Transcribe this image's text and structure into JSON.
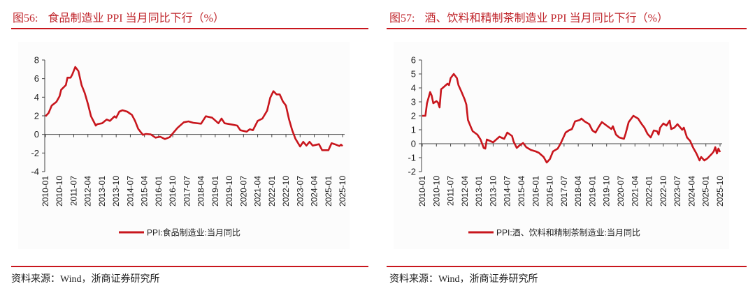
{
  "line_color": "#c8161d",
  "accent_color": "#c0272d",
  "charts": [
    {
      "figure_no": "图56:",
      "title": "食品制造业 PPI 当月同比下行（%）",
      "source": "资料来源：Wind，浙商证券研究所"
    },
    {
      "figure_no": "图57:",
      "title": "酒、饮料和精制茶制造业 PPI 当月同比下行（%）",
      "source": "资料来源：Wind，浙商证券研究所"
    }
  ],
  "chart_data": [
    {
      "type": "line",
      "title": "食品制造业 PPI 当月同比下行（%）",
      "ylim": [
        -4,
        8
      ],
      "yticks": [
        "-4",
        "-2",
        "0",
        "2",
        "4",
        "6",
        "8"
      ],
      "xlim": [
        "2010-01",
        "2025-10"
      ],
      "xticks": [
        "2010-01",
        "2010-10",
        "2011-07",
        "2012-04",
        "2013-01",
        "2013-10",
        "2014-07",
        "2015-04",
        "2016-01",
        "2016-10",
        "2017-07",
        "2018-04",
        "2019-01",
        "2019-10",
        "2020-07",
        "2021-04",
        "2022-01",
        "2022-10",
        "2023-07",
        "2024-04",
        "2025-01",
        "2025-10"
      ],
      "legend_position": "bottom",
      "grid": false,
      "series": [
        {
          "name": "PPI:食品制造业:当月同比",
          "points": [
            [
              "2010-01",
              1.95
            ],
            [
              "2010-03",
              2.3
            ],
            [
              "2010-05",
              3.1
            ],
            [
              "2010-08",
              3.5
            ],
            [
              "2010-10",
              4.1
            ],
            [
              "2010-11",
              4.8
            ],
            [
              "2011-02",
              5.3
            ],
            [
              "2011-03",
              6.1
            ],
            [
              "2011-05",
              6.1
            ],
            [
              "2011-06",
              6.4
            ],
            [
              "2011-08",
              7.25
            ],
            [
              "2011-10",
              6.8
            ],
            [
              "2011-12",
              5.3
            ],
            [
              "2012-02",
              4.45
            ],
            [
              "2012-04",
              3.3
            ],
            [
              "2012-06",
              1.95
            ],
            [
              "2012-09",
              0.95
            ],
            [
              "2012-10",
              1.1
            ],
            [
              "2013-01",
              1.2
            ],
            [
              "2013-04",
              1.6
            ],
            [
              "2013-06",
              1.45
            ],
            [
              "2013-09",
              1.95
            ],
            [
              "2013-10",
              1.8
            ],
            [
              "2013-12",
              2.45
            ],
            [
              "2014-02",
              2.6
            ],
            [
              "2014-05",
              2.45
            ],
            [
              "2014-08",
              2.1
            ],
            [
              "2014-10",
              1.45
            ],
            [
              "2014-12",
              0.6
            ],
            [
              "2015-03",
              -0.05
            ],
            [
              "2015-05",
              0.05
            ],
            [
              "2015-08",
              0.0
            ],
            [
              "2015-11",
              -0.35
            ],
            [
              "2016-02",
              -0.25
            ],
            [
              "2016-05",
              -0.5
            ],
            [
              "2016-08",
              -0.3
            ],
            [
              "2016-10",
              0.1
            ],
            [
              "2017-01",
              0.7
            ],
            [
              "2017-05",
              1.3
            ],
            [
              "2017-08",
              1.4
            ],
            [
              "2017-11",
              1.25
            ],
            [
              "2018-04",
              1.15
            ],
            [
              "2018-07",
              1.95
            ],
            [
              "2018-11",
              1.8
            ],
            [
              "2019-03",
              1.2
            ],
            [
              "2019-05",
              1.7
            ],
            [
              "2019-07",
              1.2
            ],
            [
              "2019-12",
              1.05
            ],
            [
              "2020-03",
              0.95
            ],
            [
              "2020-05",
              0.45
            ],
            [
              "2020-09",
              0.3
            ],
            [
              "2020-11",
              0.55
            ],
            [
              "2021-01",
              0.45
            ],
            [
              "2021-04",
              1.45
            ],
            [
              "2021-07",
              1.7
            ],
            [
              "2021-10",
              2.55
            ],
            [
              "2021-12",
              3.95
            ],
            [
              "2022-02",
              4.65
            ],
            [
              "2022-04",
              4.3
            ],
            [
              "2022-06",
              4.3
            ],
            [
              "2022-08",
              3.55
            ],
            [
              "2022-10",
              3.1
            ],
            [
              "2022-12",
              1.6
            ],
            [
              "2023-02",
              0.45
            ],
            [
              "2023-04",
              -0.45
            ],
            [
              "2023-07",
              -1.3
            ],
            [
              "2023-09",
              -0.8
            ],
            [
              "2023-11",
              -1.2
            ],
            [
              "2024-01",
              -0.8
            ],
            [
              "2024-03",
              -1.2
            ],
            [
              "2024-07",
              -1.05
            ],
            [
              "2024-09",
              -1.7
            ],
            [
              "2024-12",
              -1.7
            ],
            [
              "2025-01",
              -1.7
            ],
            [
              "2025-03",
              -0.95
            ],
            [
              "2025-05",
              -1.05
            ],
            [
              "2025-08",
              -1.25
            ],
            [
              "2025-09",
              -1.1
            ],
            [
              "2025-10",
              -1.25
            ]
          ]
        }
      ]
    },
    {
      "type": "line",
      "title": "酒、饮料和精制茶制造业 PPI 当月同比下行（%）",
      "ylim": [
        -2,
        6
      ],
      "yticks": [
        "-2",
        "-1",
        "0",
        "1",
        "2",
        "3",
        "4",
        "5",
        "6"
      ],
      "xlim": [
        "2010-01",
        "2025-10"
      ],
      "xticks": [
        "2010-01",
        "2010-10",
        "2011-07",
        "2012-04",
        "2013-01",
        "2013-10",
        "2014-07",
        "2015-04",
        "2016-01",
        "2016-10",
        "2017-07",
        "2018-04",
        "2019-01",
        "2019-10",
        "2020-07",
        "2021-04",
        "2022-01",
        "2022-10",
        "2023-07",
        "2024-04",
        "2025-01",
        "2025-10"
      ],
      "legend_position": "bottom",
      "grid": false,
      "series": [
        {
          "name": "PPI:酒、饮料和精制茶制造业:当月同比",
          "points": [
            [
              "2010-01",
              2.0
            ],
            [
              "2010-03",
              2.0
            ],
            [
              "2010-04",
              2.9
            ],
            [
              "2010-06",
              3.7
            ],
            [
              "2010-07",
              3.45
            ],
            [
              "2010-08",
              2.9
            ],
            [
              "2010-10",
              3.05
            ],
            [
              "2010-11",
              2.95
            ],
            [
              "2010-12",
              2.6
            ],
            [
              "2011-01",
              3.9
            ],
            [
              "2011-03",
              4.1
            ],
            [
              "2011-05",
              4.3
            ],
            [
              "2011-06",
              4.2
            ],
            [
              "2011-07",
              4.7
            ],
            [
              "2011-09",
              5.0
            ],
            [
              "2011-11",
              4.7
            ],
            [
              "2011-12",
              4.2
            ],
            [
              "2012-02",
              3.7
            ],
            [
              "2012-04",
              3.15
            ],
            [
              "2012-05",
              2.8
            ],
            [
              "2012-06",
              1.7
            ],
            [
              "2012-08",
              1.15
            ],
            [
              "2012-09",
              0.9
            ],
            [
              "2012-12",
              0.65
            ],
            [
              "2013-02",
              0.3
            ],
            [
              "2013-04",
              -0.3
            ],
            [
              "2013-05",
              -0.35
            ],
            [
              "2013-06",
              0.3
            ],
            [
              "2013-08",
              0.2
            ],
            [
              "2013-10",
              0.1
            ],
            [
              "2013-12",
              0.3
            ],
            [
              "2014-02",
              0.5
            ],
            [
              "2014-05",
              0.35
            ],
            [
              "2014-07",
              0.8
            ],
            [
              "2014-10",
              0.55
            ],
            [
              "2014-11",
              0.15
            ],
            [
              "2015-01",
              -0.3
            ],
            [
              "2015-03",
              -0.1
            ],
            [
              "2015-05",
              0.05
            ],
            [
              "2015-07",
              -0.25
            ],
            [
              "2015-10",
              -0.45
            ],
            [
              "2016-01",
              -0.55
            ],
            [
              "2016-03",
              -0.65
            ],
            [
              "2016-06",
              -0.95
            ],
            [
              "2016-08",
              -1.35
            ],
            [
              "2016-10",
              -1.1
            ],
            [
              "2016-12",
              -0.55
            ],
            [
              "2017-03",
              -0.35
            ],
            [
              "2017-05",
              0.05
            ],
            [
              "2017-08",
              0.8
            ],
            [
              "2017-10",
              0.95
            ],
            [
              "2017-12",
              1.05
            ],
            [
              "2018-02",
              1.6
            ],
            [
              "2018-05",
              1.7
            ],
            [
              "2018-06",
              1.8
            ],
            [
              "2018-08",
              1.6
            ],
            [
              "2018-11",
              1.4
            ],
            [
              "2019-01",
              0.95
            ],
            [
              "2019-03",
              0.8
            ],
            [
              "2019-05",
              1.2
            ],
            [
              "2019-07",
              1.55
            ],
            [
              "2019-10",
              1.3
            ],
            [
              "2020-01",
              1.05
            ],
            [
              "2020-02",
              1.25
            ],
            [
              "2020-04",
              0.65
            ],
            [
              "2020-06",
              0.45
            ],
            [
              "2020-09",
              0.35
            ],
            [
              "2020-10",
              0.7
            ],
            [
              "2020-12",
              1.55
            ],
            [
              "2021-03",
              2.0
            ],
            [
              "2021-06",
              1.8
            ],
            [
              "2021-08",
              1.45
            ],
            [
              "2021-10",
              1.15
            ],
            [
              "2021-12",
              0.7
            ],
            [
              "2022-02",
              0.45
            ],
            [
              "2022-04",
              0.95
            ],
            [
              "2022-06",
              0.9
            ],
            [
              "2022-07",
              0.65
            ],
            [
              "2022-08",
              1.15
            ],
            [
              "2022-10",
              1.45
            ],
            [
              "2022-12",
              1.3
            ],
            [
              "2023-02",
              1.65
            ],
            [
              "2023-03",
              1.05
            ],
            [
              "2023-05",
              1.15
            ],
            [
              "2023-07",
              1.4
            ],
            [
              "2023-10",
              1.0
            ],
            [
              "2023-11",
              1.15
            ],
            [
              "2024-01",
              0.45
            ],
            [
              "2024-03",
              0.2
            ],
            [
              "2024-05",
              -0.3
            ],
            [
              "2024-07",
              -0.7
            ],
            [
              "2024-09",
              -1.2
            ],
            [
              "2024-10",
              -0.95
            ],
            [
              "2024-12",
              -1.2
            ],
            [
              "2025-02",
              -1.05
            ],
            [
              "2025-05",
              -0.7
            ],
            [
              "2025-06",
              -0.55
            ],
            [
              "2025-07",
              -0.25
            ],
            [
              "2025-08",
              -0.7
            ],
            [
              "2025-09",
              -0.35
            ],
            [
              "2025-10",
              -0.6
            ]
          ]
        }
      ]
    }
  ]
}
